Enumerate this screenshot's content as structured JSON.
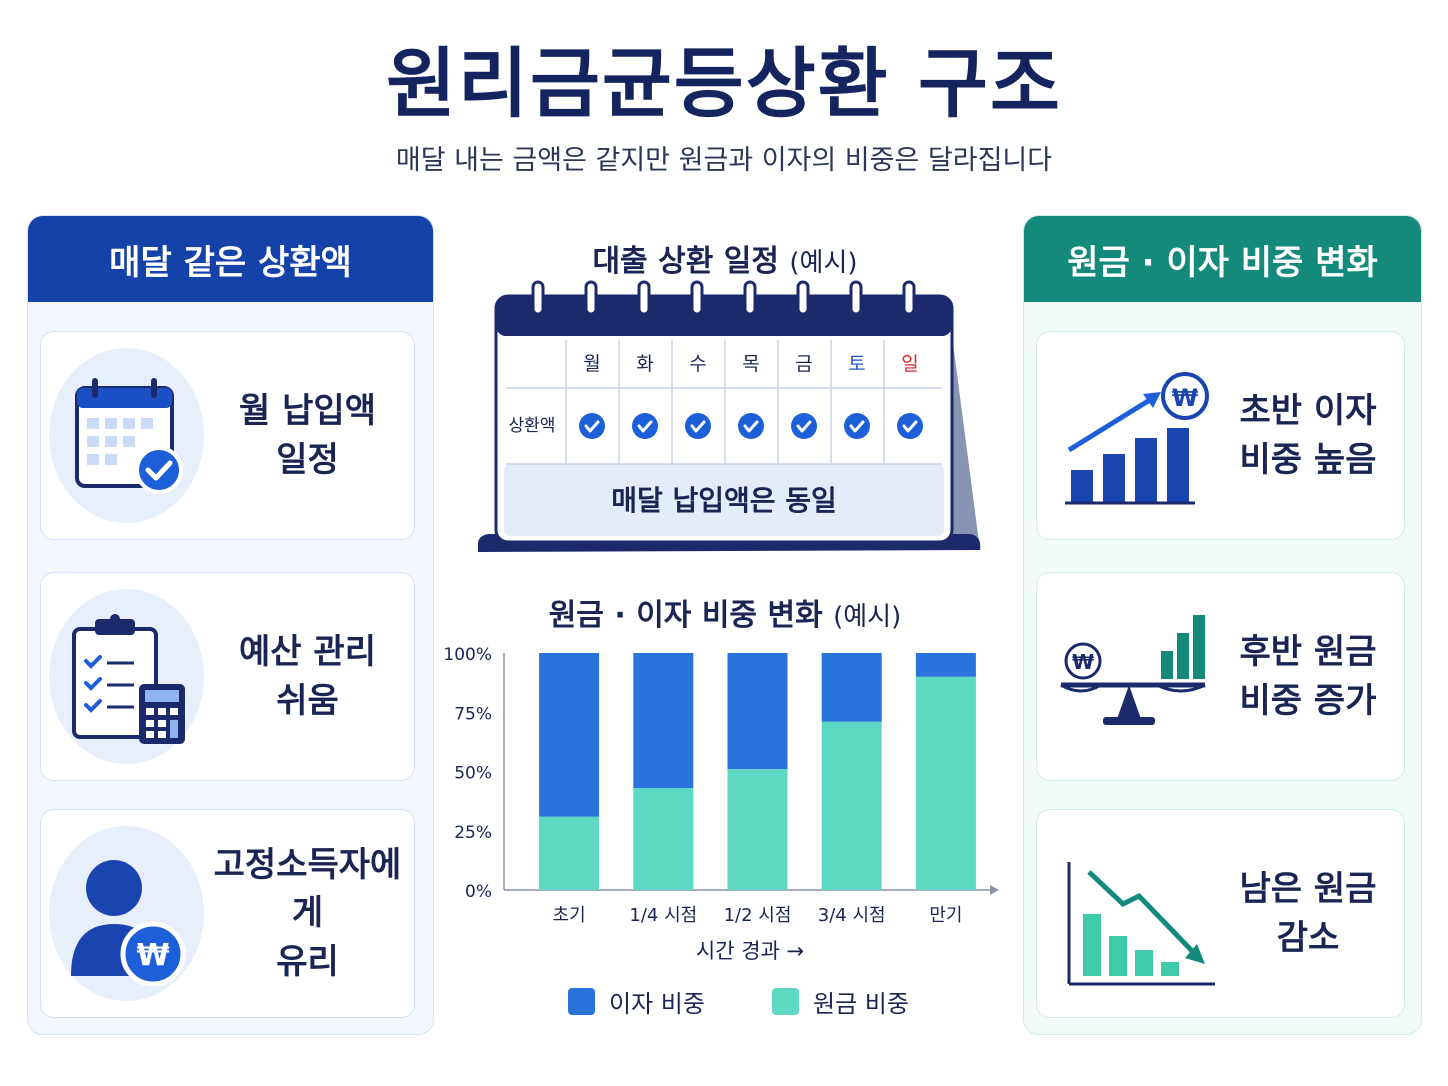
{
  "header": {
    "title": "원리금균등상환 구조",
    "subtitle": "매달 내는 금액은 같지만 원금과 이자의 비중은 달라집니다"
  },
  "left_panel": {
    "title": "매달 같은 상환액",
    "cards": [
      {
        "label": "월 납입액\n일정",
        "icon": "calendar-check-icon"
      },
      {
        "label": "예산 관리\n쉬움",
        "icon": "clipboard-calculator-icon"
      },
      {
        "label": "고정소득자에게\n유리",
        "icon": "person-won-icon"
      }
    ]
  },
  "calendar": {
    "title": "대출 상환 일정",
    "title_suffix": "(예시)",
    "days": [
      "월",
      "화",
      "수",
      "목",
      "금",
      "토",
      "일"
    ],
    "row_label": "상환액",
    "footer": "매달 납입액은 동일",
    "colors": {
      "saturday": "#1a56c4",
      "sunday": "#d42a2a",
      "check": "#1d5fd8"
    }
  },
  "chart_title": {
    "title": "원금 · 이자 비중 변화",
    "title_suffix": "(예시)"
  },
  "chart_data": {
    "type": "bar",
    "stacked": true,
    "categories": [
      "초기",
      "1/4 시점",
      "1/2 시점",
      "3/4 시점",
      "만기"
    ],
    "series": [
      {
        "name": "원금 비중",
        "color": "#5dd8c2",
        "values": [
          31,
          43,
          51,
          71,
          90
        ]
      },
      {
        "name": "이자 비중",
        "color": "#2a72dc",
        "values": [
          69,
          57,
          49,
          29,
          10
        ]
      }
    ],
    "yticks": [
      "100%",
      "75%",
      "50%",
      "25%",
      "0%"
    ],
    "ylim": [
      0,
      100
    ],
    "xlabel": "시간 경과 →",
    "legend_position": "bottom"
  },
  "legend": [
    {
      "label": "이자 비중",
      "color": "#2a72dc"
    },
    {
      "label": "원금 비중",
      "color": "#5dd8c2"
    }
  ],
  "right_panel": {
    "title": "원금 · 이자 비중 변화",
    "cards": [
      {
        "label": "초반 이자\n비중 높음",
        "icon": "rising-chart-won-icon"
      },
      {
        "label": "후반 원금\n비중 증가",
        "icon": "balance-scale-icon"
      },
      {
        "label": "남은 원금\n감소",
        "icon": "declining-chart-icon"
      }
    ]
  },
  "colors": {
    "navy": "#14245e",
    "blue": "#1442a8",
    "teal": "#148a7c"
  }
}
